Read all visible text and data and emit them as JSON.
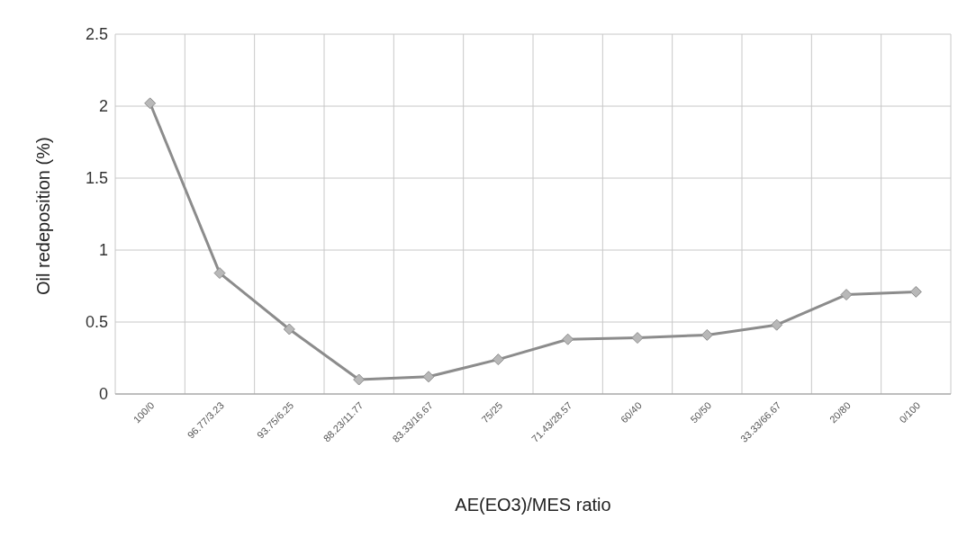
{
  "chart_data": {
    "type": "line",
    "xlabel": "AE(EO3)/MES ratio",
    "ylabel": "Oil redeposition (%)",
    "categories": [
      "100/0",
      "96.77/3.23",
      "93.75/6.25",
      "88.23/11.77",
      "83.33/16.67",
      "75/25",
      "71.43/28.57",
      "60/40",
      "50/50",
      "33.33/66.67",
      "20/80",
      "0/100"
    ],
    "series": [
      {
        "color": "#8c8c8c",
        "values": [
          2.02,
          0.84,
          0.45,
          0.1,
          0.12,
          0.24,
          0.38,
          0.39,
          0.41,
          0.48,
          0.69,
          0.71
        ]
      }
    ],
    "ylim": [
      0,
      2.5
    ],
    "yticks": [
      0,
      0.5,
      1,
      1.5,
      2,
      2.5
    ],
    "grid": true,
    "marker": "diamond",
    "line_style": "solid",
    "legend": false
  }
}
